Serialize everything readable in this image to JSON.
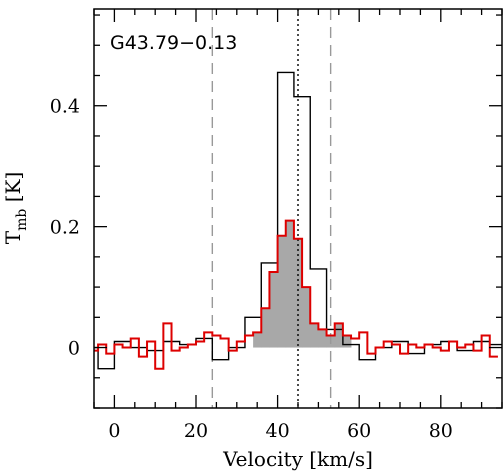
{
  "chart_data": {
    "type": "line",
    "title": "",
    "annotation": "G43.79−0.13",
    "xlabel": "Velocity [km/s]",
    "ylabel_main": "T",
    "ylabel_sub": "mb",
    "ylabel_unit": " [K]",
    "xlim": [
      -5,
      95
    ],
    "ylim": [
      -0.1,
      0.56
    ],
    "xticks_major": [
      0,
      20,
      40,
      60,
      80
    ],
    "xticks_minor": [
      -5,
      5,
      10,
      15,
      25,
      30,
      35,
      45,
      50,
      55,
      65,
      70,
      75,
      85,
      90,
      95
    ],
    "yticks_major": [
      0,
      0.2,
      0.4
    ],
    "ytick_labels": [
      "0",
      "0.2",
      "0.4"
    ],
    "yticks_minor": [
      -0.1,
      -0.05,
      0.05,
      0.1,
      0.15,
      0.25,
      0.3,
      0.35,
      0.45,
      0.5,
      0.55
    ],
    "grid": false,
    "vlines": [
      {
        "x": 24,
        "style": "dashed",
        "color": "#999999"
      },
      {
        "x": 53,
        "style": "dashed",
        "color": "#999999"
      },
      {
        "x": 45,
        "style": "dotted",
        "color": "#000000"
      }
    ],
    "series": [
      {
        "color": "#000000",
        "draw": "step",
        "step_width": 4.0,
        "x": [
          -6,
          -2,
          2,
          6,
          10,
          14,
          18,
          22,
          26,
          30,
          34,
          38,
          42,
          46,
          50,
          54,
          58,
          62,
          66,
          70,
          74,
          78,
          82,
          86,
          90,
          94
        ],
        "y": [
          0.0,
          -0.035,
          0.01,
          0.0,
          -0.005,
          0.01,
          0.005,
          0.015,
          -0.02,
          0.0,
          0.05,
          0.14,
          0.455,
          0.415,
          0.13,
          0.03,
          0.005,
          -0.02,
          0.0,
          0.01,
          -0.01,
          0.005,
          0.01,
          -0.005,
          0.01,
          0.005
        ]
      },
      {
        "color": "#dd0000",
        "draw": "step",
        "step_width": 2.0,
        "fill_range": [
          33,
          58
        ],
        "fill_color": "#a8a8a8",
        "x": [
          -5,
          -3,
          -1,
          1,
          3,
          5,
          7,
          9,
          11,
          13,
          15,
          17,
          19,
          21,
          23,
          25,
          27,
          29,
          31,
          33,
          35,
          37,
          39,
          41,
          43,
          45,
          47,
          49,
          51,
          53,
          55,
          57,
          59,
          61,
          63,
          65,
          67,
          69,
          71,
          73,
          75,
          77,
          79,
          81,
          83,
          85,
          87,
          89,
          91,
          93
        ],
        "y": [
          -0.005,
          0.005,
          -0.01,
          0.005,
          0.0,
          0.015,
          -0.015,
          0.01,
          -0.035,
          0.04,
          -0.005,
          0.0,
          0.005,
          0.01,
          0.025,
          0.02,
          0.015,
          -0.005,
          0.01,
          0.02,
          0.025,
          0.065,
          0.125,
          0.185,
          0.21,
          0.18,
          0.1,
          0.04,
          0.03,
          0.02,
          0.04,
          0.02,
          0.015,
          0.025,
          -0.01,
          0.0,
          0.01,
          0.005,
          -0.01,
          0.005,
          0.0,
          0.005,
          0.0,
          -0.005,
          0.01,
          0.0,
          0.005,
          -0.005,
          0.02,
          -0.015
        ]
      }
    ]
  }
}
